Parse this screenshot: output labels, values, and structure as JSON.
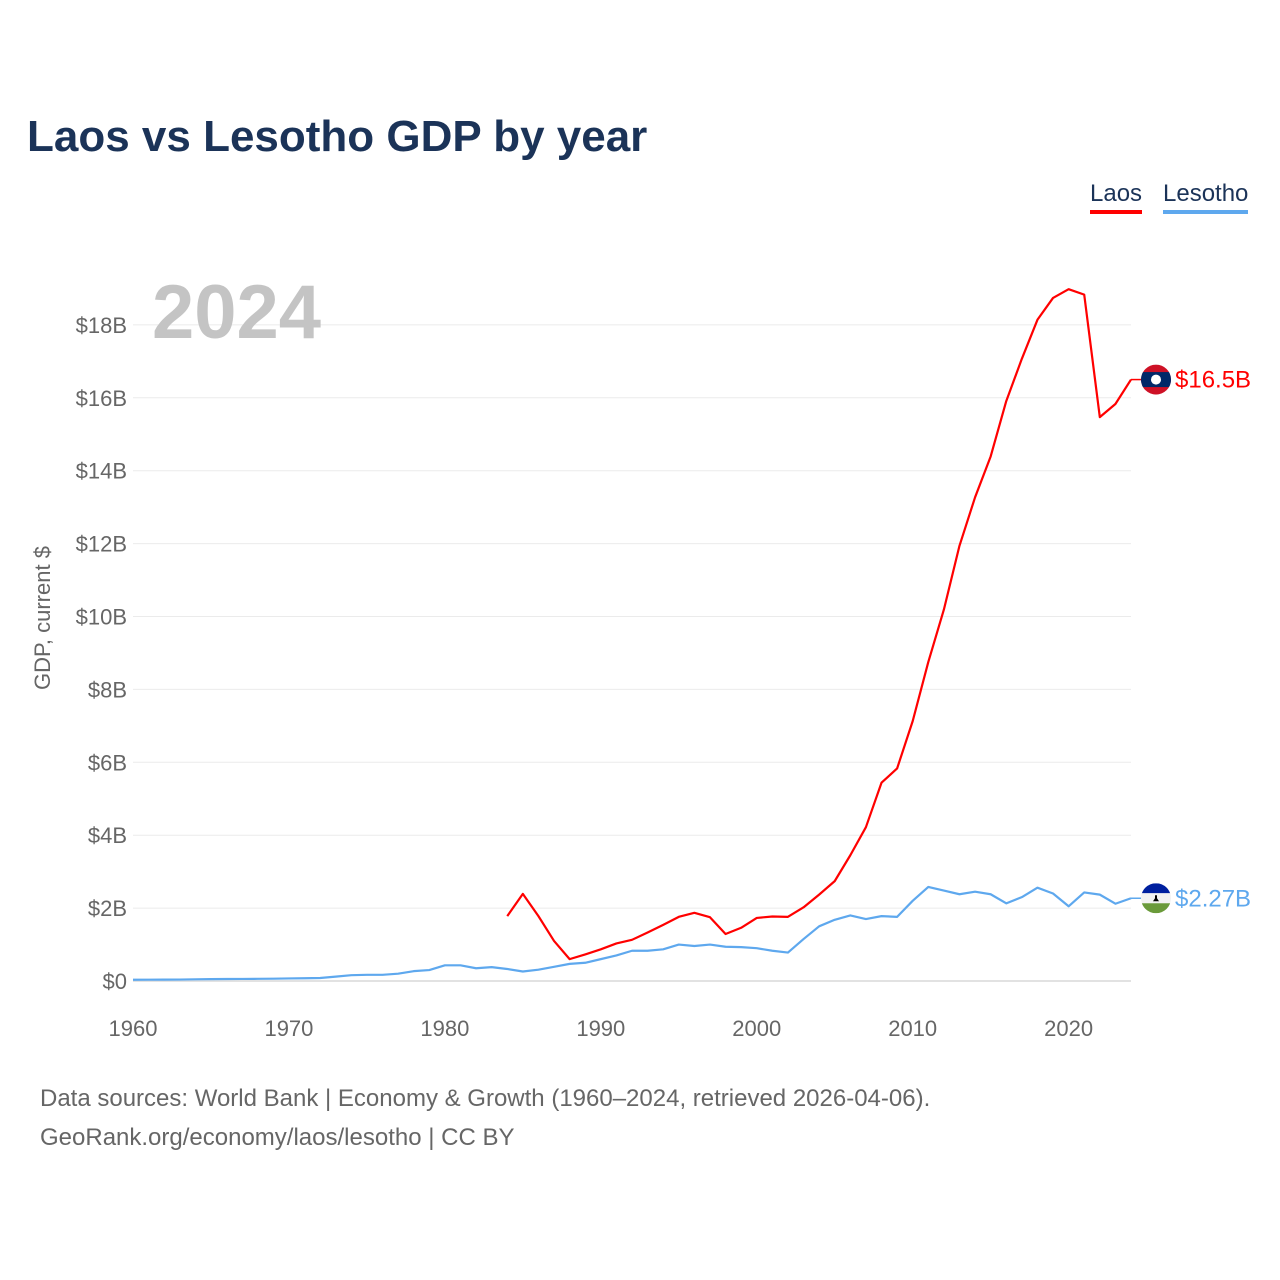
{
  "title": "Laos vs Lesotho GDP by year",
  "footer": {
    "line1": "Data sources: World Bank | Economy & Growth (1960–2024, retrieved 2026-04-06).",
    "line2": "GeoRank.org/economy/laos/lesotho | CC BY"
  },
  "chart_data": {
    "type": "line",
    "title": "Laos vs Lesotho GDP by year",
    "year_label": "2024",
    "xlabel": "",
    "ylabel": "GDP, current $",
    "xlim": [
      1960,
      2024
    ],
    "ylim": [
      0,
      19.5
    ],
    "x_ticks": [
      1960,
      1970,
      1980,
      1990,
      2000,
      2010,
      2020
    ],
    "y_ticks": [
      0,
      2,
      4,
      6,
      8,
      10,
      12,
      14,
      16,
      18
    ],
    "y_tick_labels": [
      "$0",
      "$2B",
      "$4B",
      "$6B",
      "$8B",
      "$10B",
      "$12B",
      "$14B",
      "$16B",
      "$18B"
    ],
    "grid": true,
    "legend_position": "top-right",
    "units": "billions USD",
    "series": [
      {
        "name": "Laos",
        "color": "#ff0000",
        "end_label": "$16.5B",
        "start_year": 1984,
        "values": [
          1.78,
          2.39,
          1.78,
          1.1,
          0.6,
          0.73,
          0.87,
          1.03,
          1.13,
          1.33,
          1.54,
          1.76,
          1.87,
          1.75,
          1.29,
          1.46,
          1.73,
          1.77,
          1.76,
          2.02,
          2.37,
          2.74,
          3.45,
          4.22,
          5.44,
          5.83,
          7.13,
          8.75,
          10.19,
          11.94,
          13.27,
          14.39,
          15.91,
          17.07,
          18.14,
          18.74,
          18.98,
          18.83,
          15.47,
          15.83,
          16.5
        ]
      },
      {
        "name": "Lesotho",
        "color": "#5ea8ee",
        "end_label": "$2.27B",
        "start_year": 1960,
        "values": [
          0.034,
          0.036,
          0.038,
          0.04,
          0.046,
          0.052,
          0.054,
          0.056,
          0.06,
          0.063,
          0.07,
          0.075,
          0.083,
          0.12,
          0.16,
          0.17,
          0.17,
          0.2,
          0.27,
          0.3,
          0.43,
          0.43,
          0.35,
          0.38,
          0.33,
          0.26,
          0.31,
          0.39,
          0.47,
          0.5,
          0.6,
          0.7,
          0.83,
          0.83,
          0.87,
          1.0,
          0.96,
          1.0,
          0.94,
          0.93,
          0.9,
          0.83,
          0.78,
          1.15,
          1.5,
          1.68,
          1.8,
          1.7,
          1.78,
          1.76,
          2.2,
          2.58,
          2.48,
          2.38,
          2.45,
          2.38,
          2.13,
          2.3,
          2.56,
          2.4,
          2.05,
          2.43,
          2.37,
          2.12,
          2.27
        ]
      }
    ]
  }
}
